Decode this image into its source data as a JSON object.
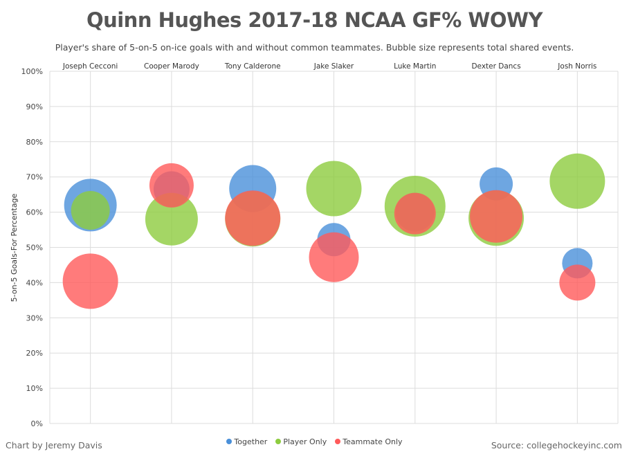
{
  "title": "Quinn Hughes 2017-18 NCAA GF% WOWY",
  "subtitle": "Player's share of 5-on-5 on-ice goals with and without common teammates. Bubble size represents total shared events.",
  "credit_left": "Chart by Jeremy Davis",
  "credit_right": "Source: collegehockeyinc.com",
  "chart_data": {
    "type": "scatter",
    "title": "Quinn Hughes 2017-18 NCAA GF% WOWY",
    "ylabel": "5-on-5 Goals-For Percentage",
    "xlabel": "",
    "ylim": [
      0,
      100
    ],
    "yticks": [
      "0%",
      "10%",
      "20%",
      "30%",
      "40%",
      "50%",
      "60%",
      "70%",
      "80%",
      "90%",
      "100%"
    ],
    "categories": [
      "Joseph Cecconi",
      "Cooper Marody",
      "Tony Calderone",
      "Jake Slaker",
      "Luke Martin",
      "Dexter Dancs",
      "Josh Norris"
    ],
    "grid": true,
    "legend_position": "bottom",
    "series": [
      {
        "name": "Together",
        "color": "#4a90d9",
        "values": [
          62,
          66.5,
          66.7,
          52.2,
          60,
          68,
          45.5
        ],
        "sizes": [
          38,
          26,
          34,
          24,
          28,
          24,
          22
        ]
      },
      {
        "name": "Player Only",
        "color": "#8dcc3f",
        "values": [
          60.5,
          58,
          58.1,
          66.7,
          61.7,
          58.3,
          68.8
        ],
        "sizes": [
          28,
          38,
          40,
          40,
          44,
          40,
          40
        ]
      },
      {
        "name": "Teammate Only",
        "color": "#ff5a5a",
        "values": [
          40.4,
          67.6,
          58.3,
          47.2,
          59.6,
          58.8,
          40
        ],
        "sizes": [
          40,
          32,
          40,
          36,
          30,
          38,
          26
        ]
      }
    ]
  }
}
